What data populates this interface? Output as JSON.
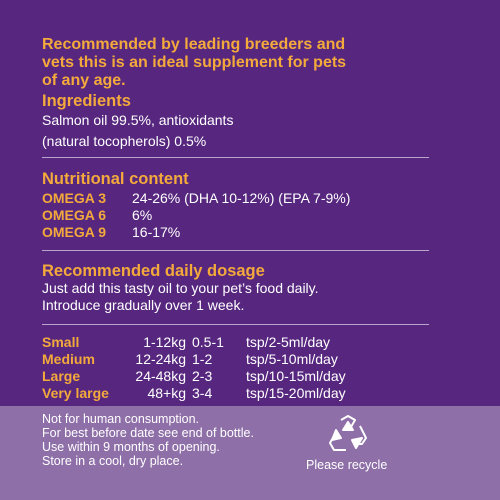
{
  "intro": [
    "Recommended by leading breeders and",
    "vets this is an ideal supplement for pets",
    "of any age."
  ],
  "ingredients": {
    "heading": "Ingredients",
    "lines": [
      "Salmon oil 99.5%, antioxidants",
      "(natural tocopherols) 0.5%"
    ]
  },
  "nutrition": {
    "heading": "Nutritional content",
    "rows": [
      {
        "key": "OMEGA 3",
        "value": "24-26% (DHA 10-12%) (EPA 7-9%)"
      },
      {
        "key": "OMEGA 6",
        "value": "6%"
      },
      {
        "key": "OMEGA 9",
        "value": "16-17%"
      }
    ]
  },
  "dosage": {
    "heading": "Recommended daily dosage",
    "lines": [
      "Just add this tasty oil to your pet’s food daily.",
      "Introduce gradually over 1 week."
    ],
    "rows": [
      {
        "size": "Small",
        "weight": "1-12kg",
        "amount": "0.5-1",
        "unit": "tsp/2-5ml/day"
      },
      {
        "size": "Medium",
        "weight": "12-24kg",
        "amount": "1-2",
        "unit": "tsp/5-10ml/day"
      },
      {
        "size": "Large",
        "weight": "24-48kg",
        "amount": "2-3",
        "unit": "tsp/10-15ml/day"
      },
      {
        "size": "Very large",
        "weight": "48+kg",
        "amount": "3-4",
        "unit": "tsp/15-20ml/day"
      }
    ]
  },
  "footer": {
    "notes": [
      "Not for human consumption.",
      "For best before date see end of bottle.",
      "Use within 9 months of opening.",
      "Store in a cool, dry place."
    ],
    "recycle_label": "Please recycle"
  },
  "colors": {
    "background": "#57277f",
    "footer": "#8e6fa8",
    "accent": "#f3a93b"
  },
  "icons": {
    "recycle": "recycle-icon"
  }
}
